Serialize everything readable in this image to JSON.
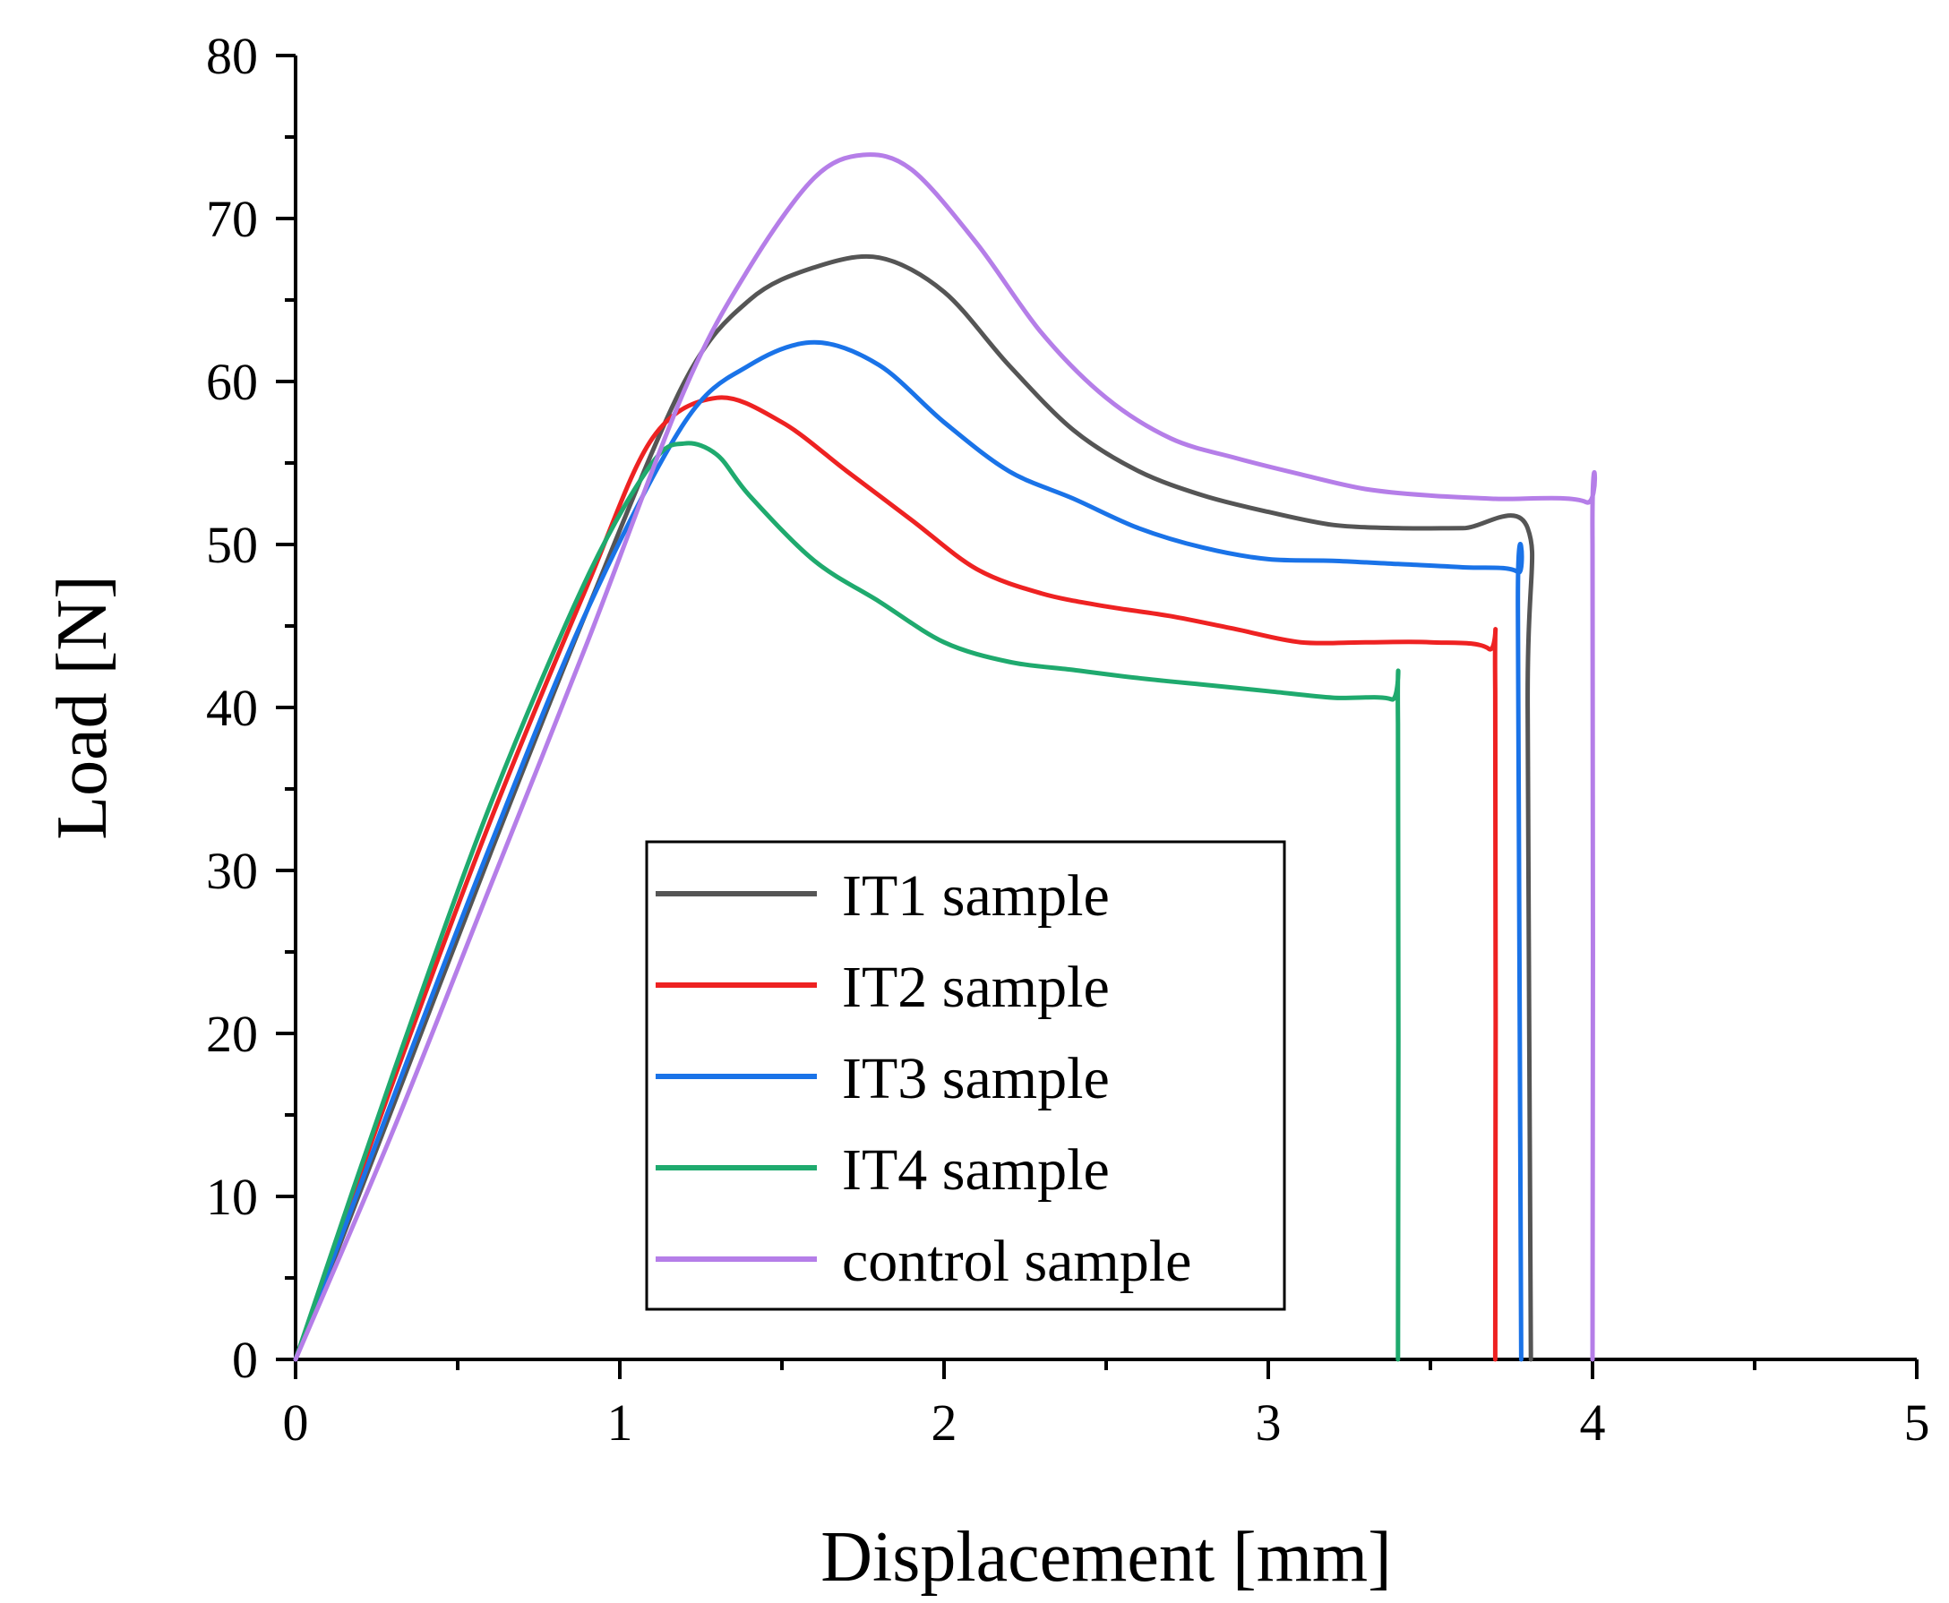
{
  "chart_data": {
    "type": "line",
    "title": "",
    "xlabel": "Displacement [mm]",
    "ylabel": "Load [N]",
    "xlim": [
      0,
      5
    ],
    "ylim": [
      0,
      80
    ],
    "xticks": [
      "0",
      "1",
      "2",
      "3",
      "4",
      "5"
    ],
    "yticks": [
      "0",
      "10",
      "20",
      "30",
      "40",
      "50",
      "60",
      "70",
      "80"
    ],
    "grid": false,
    "legend_position": "bottom-center",
    "series": [
      {
        "name": "IT1 sample",
        "color": "#555555",
        "x": [
          0,
          0.3,
          0.6,
          0.9,
          1.2,
          1.4,
          1.6,
          1.8,
          2.0,
          2.2,
          2.4,
          2.6,
          2.8,
          3.0,
          3.2,
          3.4,
          3.6,
          3.8,
          3.8,
          3.81
        ],
        "y": [
          0,
          15.5,
          31,
          46,
          60,
          65,
          67,
          67.6,
          65.5,
          61,
          57,
          54.5,
          53,
          52,
          51.2,
          51,
          51,
          51,
          40,
          0
        ]
      },
      {
        "name": "IT2 sample",
        "color": "#ee2222",
        "x": [
          0,
          0.3,
          0.6,
          0.9,
          1.1,
          1.3,
          1.5,
          1.7,
          1.9,
          2.1,
          2.3,
          2.5,
          2.7,
          2.9,
          3.1,
          3.3,
          3.5,
          3.68,
          3.7,
          3.7
        ],
        "y": [
          0,
          17,
          33,
          47.5,
          56.5,
          59,
          57.5,
          54.5,
          51.5,
          48.5,
          47,
          46.2,
          45.6,
          44.8,
          44,
          44,
          44,
          43.6,
          41,
          0
        ]
      },
      {
        "name": "IT3 sample",
        "color": "#1a73e8",
        "x": [
          0,
          0.3,
          0.6,
          0.9,
          1.2,
          1.4,
          1.6,
          1.8,
          2.0,
          2.2,
          2.4,
          2.6,
          2.8,
          3.0,
          3.2,
          3.4,
          3.6,
          3.77,
          3.77,
          3.78
        ],
        "y": [
          0,
          16,
          31.5,
          46,
          57.5,
          61,
          62.4,
          61,
          57.5,
          54.5,
          52.8,
          51,
          49.8,
          49.1,
          49,
          48.8,
          48.6,
          48.3,
          46,
          0
        ]
      },
      {
        "name": "IT4 sample",
        "color": "#1faa6e",
        "x": [
          0,
          0.3,
          0.6,
          0.9,
          1.1,
          1.2,
          1.3,
          1.4,
          1.6,
          1.8,
          2.0,
          2.2,
          2.4,
          2.6,
          2.8,
          3.0,
          3.2,
          3.38,
          3.4,
          3.4
        ],
        "y": [
          0,
          17.5,
          34,
          48,
          55,
          56.2,
          55.5,
          53,
          49,
          46.5,
          44,
          42.8,
          42.3,
          41.8,
          41.4,
          41,
          40.6,
          40.5,
          39,
          0
        ]
      },
      {
        "name": "control sample",
        "color": "#b57ee8",
        "x": [
          0,
          0.3,
          0.6,
          0.9,
          1.2,
          1.4,
          1.6,
          1.75,
          1.9,
          2.1,
          2.3,
          2.5,
          2.7,
          2.9,
          3.1,
          3.3,
          3.5,
          3.7,
          3.98,
          4.0,
          4.0
        ],
        "y": [
          0,
          14,
          29,
          44,
          59.5,
          67,
          72.5,
          73.9,
          73,
          68.5,
          63,
          59,
          56.5,
          55.3,
          54.3,
          53.4,
          53,
          52.8,
          52.6,
          50,
          0
        ]
      }
    ]
  }
}
